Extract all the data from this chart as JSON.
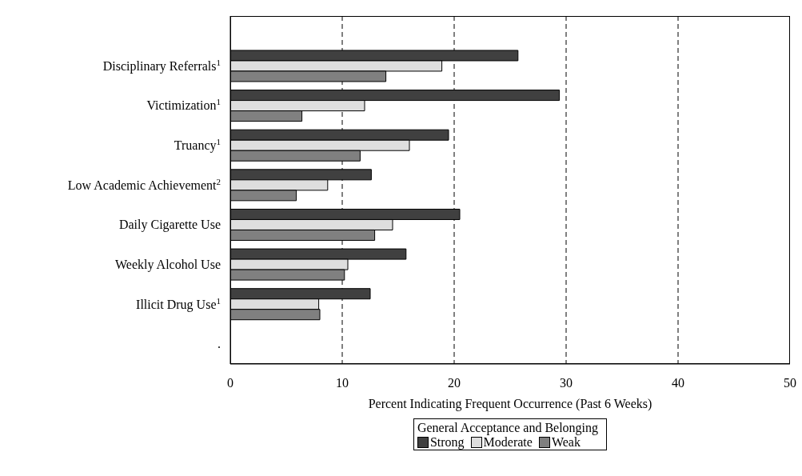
{
  "chart_data": {
    "type": "bar",
    "orientation": "horizontal",
    "categories": [
      "Disciplinary Referrals$^{1}$",
      "Victimization$^{1}$",
      "Truancy$^{1}$",
      "Low Academic Achievement$^{2}$",
      "Daily Cigarette Use",
      "Weekly Alcohol Use",
      "Illicit Drug Use$^{1}$",
      "."
    ],
    "series": [
      {
        "name": "Strong",
        "color": "#404040",
        "values": [
          25.7,
          29.4,
          19.5,
          12.6,
          20.5,
          15.7,
          12.5,
          null
        ]
      },
      {
        "name": "Moderate",
        "color": "#dedede",
        "values": [
          18.9,
          12.0,
          16.0,
          8.7,
          14.5,
          10.5,
          7.9,
          null
        ]
      },
      {
        "name": "Weak",
        "color": "#808080",
        "values": [
          13.9,
          6.4,
          11.6,
          5.9,
          12.9,
          10.2,
          8.0,
          null
        ]
      }
    ],
    "xlim": [
      0,
      50
    ],
    "xticks": [
      0,
      10,
      20,
      30,
      40,
      50
    ],
    "xlabel": "Percent Indicating Frequent Occurrence (Past 6 Weeks)",
    "legend_title": "General Acceptance and Belonging",
    "legend": "bottom",
    "grid": "x"
  }
}
